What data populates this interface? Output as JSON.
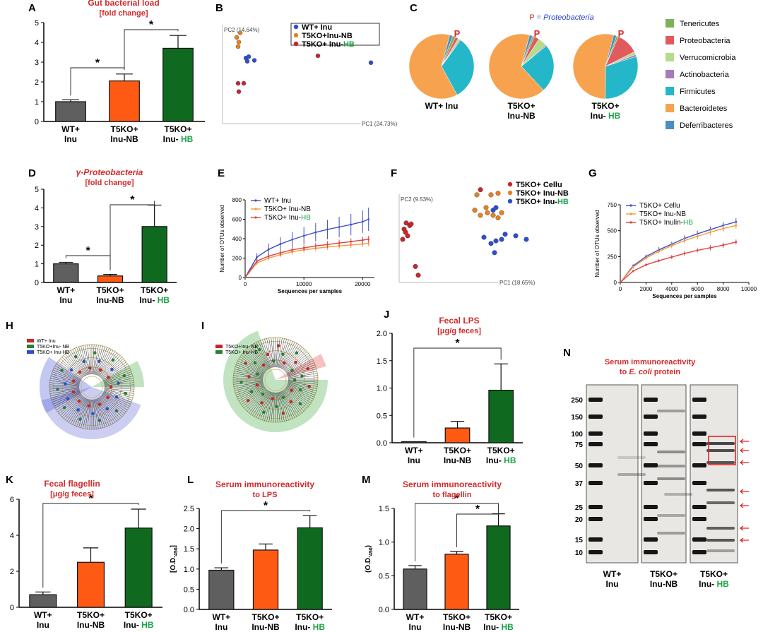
{
  "colors": {
    "wt": "#5f5f5f",
    "nb": "#ff5a14",
    "hb": "#0f6a1f",
    "red_title": "#d42a2a",
    "green_label": "#1ea34a",
    "blue_label": "#2b47c9",
    "pie_tenericutes": "#7fb05a",
    "pie_proteobacteria": "#e05a5e",
    "pie_verrucomicrobia": "#b3dc8d",
    "pie_actinobacteria": "#a77bb8",
    "pie_firmicutes": "#23b7c9",
    "pie_bacteroidetes": "#f7a24e",
    "pie_deferribacteres": "#4a8fc2",
    "line_blue": "#4050c8",
    "line_orange": "#f39c3a",
    "line_red": "#e04444",
    "sig_red": "#e02424"
  },
  "panels": {
    "A": {
      "letter": "A",
      "title_lines": [
        "Gut bacterial load",
        "[fold change]"
      ]
    },
    "B": {
      "letter": "B",
      "pc1": "PC1 (24.73%)",
      "pc2": "PC2 (14.64%)",
      "legend": [
        {
          "text": "WT+ Inu",
          "color": "#2c4fd0"
        },
        {
          "text": "T5KO+Inu-NB",
          "color": "#e8811f"
        },
        {
          "text": "T5KO+ Inu-",
          "suffix": "HB",
          "color": "#c8262c"
        }
      ]
    },
    "C": {
      "letter": "C",
      "header_p": "P",
      "header_eq": " = ",
      "header_taxon": "Proteobacteria",
      "p_marker": "P",
      "pie_labels": [
        [
          "WT+ Inu"
        ],
        [
          "T5KO+",
          "Inu-NB"
        ],
        [
          "T5KO+",
          "Inu- "
        ]
      ],
      "hb": "HB",
      "legend": [
        "Tenericutes",
        "Proteobacteria",
        "Verrucomicrobia",
        "Actinobacteria",
        "Firmicutes",
        "Bacteroidetes",
        "Deferribacteres"
      ]
    },
    "D": {
      "letter": "D",
      "title_lines": [
        "γ-Proteobacteria",
        "[fold change]"
      ]
    },
    "E": {
      "letter": "E",
      "ylabel": "Number of OTUs observed",
      "xlabel": "Sequences per samples",
      "legend": [
        {
          "text": "WT+ Inu",
          "color": "#4050c8"
        },
        {
          "text": "T5KO+ Inu-NB",
          "color": "#f39c3a"
        },
        {
          "text": "T5KO+ Inu-",
          "suffix": "HB",
          "color": "#e04444"
        }
      ]
    },
    "F": {
      "letter": "F",
      "pc1": "PC1 (18.65%)",
      "pc2": "PC2 (9.53%)",
      "legend": [
        {
          "text": "T5KO+ Cellu",
          "color": "#c8262c"
        },
        {
          "text": "T5KO+ Inu-NB",
          "color": "#e8811f"
        },
        {
          "text": "T5KO+ Inu-",
          "suffix": "HB",
          "color": "#2c4fd0"
        }
      ]
    },
    "G": {
      "letter": "G",
      "ylabel": "Number of OTUs observed",
      "xlabel": "Sequences per samples",
      "legend": [
        {
          "text": "T5KO+ Cellu",
          "color": "#4050c8"
        },
        {
          "text": "T5KO+ Inu-NB",
          "color": "#f39c3a"
        },
        {
          "text": "T5KO+ Inulin-",
          "suffix": "HB",
          "color": "#e04444"
        }
      ]
    },
    "H": {
      "letter": "H",
      "legend": [
        {
          "text": "WT+ Inu",
          "color": "#c8262c"
        },
        {
          "text": "T5KO+Inu- NB",
          "color": "#2e7d32"
        },
        {
          "text": "T5KO+ Inu-HB",
          "color": "#2c4fd0"
        }
      ]
    },
    "I": {
      "letter": "I",
      "legend": [
        {
          "text": "T5KO+Inu- NB",
          "color": "#c8262c"
        },
        {
          "text": "T5KO+ Inu-HB",
          "color": "#2e7d32"
        }
      ]
    },
    "J": {
      "letter": "J",
      "title_lines": [
        "Fecal LPS",
        "[μg/g feces]"
      ]
    },
    "K": {
      "letter": "K",
      "title_lines": [
        "Fecal flagellin",
        "[μg/g feces]"
      ]
    },
    "L": {
      "letter": "L",
      "title_lines": [
        "Serum immunoreactivity",
        "to LPS"
      ],
      "ylabel_main": "[O.D.",
      "ylabel_sub": "450",
      "ylabel_end": "]"
    },
    "M": {
      "letter": "M",
      "title_lines": [
        "Serum immunoreactivity",
        "to flagellin"
      ],
      "ylabel_main": "(O.D.",
      "ylabel_sub": "450",
      "ylabel_end": ")"
    },
    "N": {
      "letter": "N",
      "title_lines": [
        "Serum immunoreactivity",
        "to E. coli protein"
      ],
      "title_line2_pre": "to ",
      "title_line2_em": "E. coli",
      "title_line2_post": " protein",
      "markers": [
        "250",
        "150",
        "100",
        "75",
        "50",
        "37",
        "25",
        "20",
        "15",
        "10"
      ],
      "lane_labels": [
        [
          "WT+",
          "Inu"
        ],
        [
          "T5KO+",
          "Inu-NB"
        ],
        [
          "T5KO+",
          "Inu- "
        ]
      ],
      "hb": "HB"
    }
  },
  "chart_data": [
    {
      "panel": "A",
      "type": "bar",
      "categories": [
        "WT+ Inu",
        "T5KO+ Inu-NB",
        "T5KO+ Inu- HB"
      ],
      "values": [
        1.0,
        2.05,
        3.7
      ],
      "errors": [
        0.1,
        0.35,
        0.65
      ],
      "ylim": [
        0,
        5
      ],
      "yticks": [
        0,
        1,
        2,
        3,
        4,
        5
      ],
      "significance": [
        {
          "from": 0,
          "to": 1,
          "label": "*"
        },
        {
          "from": 1,
          "to": 2,
          "label": "*"
        }
      ]
    },
    {
      "panel": "D",
      "type": "bar",
      "categories": [
        "WT+ Inu",
        "T5KO+ Inu-NB",
        "T5KO+ Inu- HB"
      ],
      "values": [
        1.0,
        0.35,
        3.0
      ],
      "errors": [
        0.08,
        0.08,
        1.15
      ],
      "ylim": [
        0,
        5
      ],
      "yticks": [
        0,
        1,
        2,
        3,
        4,
        5
      ],
      "significance": [
        {
          "from": 0,
          "to": 1,
          "label": "*"
        },
        {
          "from": 1,
          "to": 2,
          "label": "*"
        }
      ]
    },
    {
      "panel": "J",
      "type": "bar",
      "categories": [
        "WT+ Inu",
        "T5KO+ Inu-NB",
        "T5KO+ Inu- HB"
      ],
      "values": [
        0.02,
        0.27,
        0.96
      ],
      "errors": [
        0.0,
        0.12,
        0.48
      ],
      "ylim": [
        0,
        2.0
      ],
      "yticks": [
        "0.0",
        "0.5",
        "1.0",
        "1.5",
        "2.0"
      ],
      "significance": [
        {
          "from": 0,
          "to": 2,
          "label": "*"
        }
      ]
    },
    {
      "panel": "K",
      "type": "bar",
      "categories": [
        "WT+ Inu",
        "T5KO+ Inu-NB",
        "T5KO+ Inu- HB"
      ],
      "values": [
        0.7,
        2.5,
        4.4
      ],
      "errors": [
        0.15,
        0.8,
        1.05
      ],
      "ylim": [
        0,
        6
      ],
      "yticks": [
        0,
        2,
        4,
        6
      ],
      "significance": [
        {
          "from": 0,
          "to": 2,
          "label": "*"
        }
      ]
    },
    {
      "panel": "L",
      "type": "bar",
      "categories": [
        "WT+ Inu",
        "T5KO+ Inu-NB",
        "T5KO+ Inu- HB"
      ],
      "values": [
        0.97,
        1.47,
        2.02
      ],
      "errors": [
        0.06,
        0.15,
        0.3
      ],
      "ylim": [
        0,
        2.5
      ],
      "yticks": [
        "0.0",
        "0.5",
        "1.0",
        "1.5",
        "2.0",
        "2.5"
      ],
      "significance": [
        {
          "from": 0,
          "to": 2,
          "label": "*"
        }
      ]
    },
    {
      "panel": "M",
      "type": "bar",
      "categories": [
        "WT+ Inu",
        "T5KO+ Inu-NB",
        "T5KO+ Inu- HB"
      ],
      "values": [
        0.6,
        0.82,
        1.24
      ],
      "errors": [
        0.05,
        0.04,
        0.18
      ],
      "ylim": [
        0,
        1.5
      ],
      "yticks": [
        "0.0",
        "0.5",
        "1.0",
        "1.5"
      ],
      "significance": [
        {
          "from": 0,
          "to": 2,
          "label": "*"
        },
        {
          "from": 1,
          "to": 2,
          "label": "*"
        }
      ]
    },
    {
      "panel": "B",
      "type": "scatter",
      "xlim": [
        -1,
        1
      ],
      "ylim": [
        -1,
        1
      ],
      "series": [
        {
          "name": "WT+ Inu",
          "color": "#2c4fd0",
          "points": [
            [
              -0.82,
              0.35
            ],
            [
              -0.8,
              0.28
            ],
            [
              -0.7,
              0.3
            ],
            [
              -0.78,
              0.38
            ],
            [
              0.95,
              0.25
            ]
          ]
        },
        {
          "name": "T5KO+Inu-NB",
          "color": "#e8811f",
          "points": [
            [
              -0.95,
              0.8
            ],
            [
              -0.92,
              0.7
            ],
            [
              -0.93,
              0.6
            ],
            [
              -0.9,
              0.9
            ]
          ]
        },
        {
          "name": "T5KO+ Inu-HB",
          "color": "#c8262c",
          "points": [
            [
              -0.93,
              -0.2
            ],
            [
              -0.85,
              -0.2
            ],
            [
              -0.92,
              -0.38
            ],
            [
              0.2,
              0.4
            ]
          ]
        }
      ]
    },
    {
      "panel": "F",
      "type": "scatter",
      "xlim": [
        -1,
        1
      ],
      "ylim": [
        -1,
        1
      ],
      "series": [
        {
          "name": "T5KO+ Cellu",
          "color": "#c8262c",
          "points": [
            [
              -0.85,
              0.3
            ],
            [
              -0.8,
              0.25
            ],
            [
              -0.88,
              0.18
            ],
            [
              -0.83,
              0.05
            ],
            [
              -0.9,
              -0.02
            ],
            [
              -0.86,
              0.12
            ],
            [
              -0.78,
              0.28
            ],
            [
              -0.72,
              -0.55
            ],
            [
              -0.68,
              -0.72
            ],
            [
              0.2,
              0.95
            ]
          ]
        },
        {
          "name": "T5KO+ Inu-NB",
          "color": "#e8811f",
          "points": [
            [
              0.15,
              0.85
            ],
            [
              0.35,
              0.85
            ],
            [
              0.45,
              0.88
            ],
            [
              0.12,
              0.55
            ],
            [
              0.2,
              0.45
            ],
            [
              0.3,
              0.5
            ],
            [
              0.38,
              0.45
            ],
            [
              0.45,
              0.4
            ],
            [
              0.5,
              0.5
            ],
            [
              0.28,
              0.6
            ]
          ]
        },
        {
          "name": "T5KO+ Inu-HB",
          "color": "#2c4fd0",
          "points": [
            [
              0.38,
              0.55
            ],
            [
              0.42,
              0.6
            ],
            [
              0.25,
              0.02
            ],
            [
              0.35,
              -0.1
            ],
            [
              0.42,
              -0.05
            ],
            [
              0.5,
              -0.02
            ],
            [
              0.55,
              0.08
            ],
            [
              0.7,
              0.05
            ],
            [
              0.85,
              -0.02
            ],
            [
              0.4,
              -0.28
            ]
          ]
        }
      ]
    },
    {
      "panel": "C",
      "type": "pie",
      "categories": [
        "Tenericutes",
        "Proteobacteria",
        "Verrucomicrobia",
        "Actinobacteria",
        "Firmicutes",
        "Bacteroidetes",
        "Deferribacteres"
      ],
      "series": [
        {
          "name": "WT+ Inu",
          "values": [
            1.5,
            1.5,
            1.0,
            0.5,
            32,
            62,
            1.5
          ]
        },
        {
          "name": "T5KO+ Inu-NB",
          "values": [
            1.0,
            2.5,
            4.5,
            0.5,
            24,
            66,
            1.5
          ]
        },
        {
          "name": "T5KO+ Inu- HB",
          "values": [
            1.0,
            11,
            1.5,
            1.0,
            30,
            54,
            1.5
          ]
        }
      ]
    },
    {
      "panel": "E",
      "type": "line",
      "xlim": [
        0,
        22000
      ],
      "ylim": [
        0,
        800
      ],
      "xticks": [
        0,
        10000,
        20000
      ],
      "yticks": [
        0,
        200,
        400,
        600,
        800
      ],
      "x": [
        0,
        2000,
        4000,
        6000,
        8000,
        10000,
        12000,
        14000,
        16000,
        18000,
        20000,
        21000
      ],
      "series": [
        {
          "name": "WT+ Inu",
          "color": "#4050c8",
          "values": [
            0,
            210,
            290,
            345,
            390,
            430,
            465,
            495,
            520,
            545,
            575,
            600
          ],
          "error": [
            0,
            40,
            60,
            70,
            80,
            90,
            95,
            100,
            105,
            110,
            115,
            120
          ]
        },
        {
          "name": "T5KO+ Inu-NB",
          "color": "#f39c3a",
          "values": [
            0,
            150,
            200,
            235,
            265,
            285,
            300,
            315,
            325,
            335,
            345,
            350
          ],
          "error": [
            0,
            20,
            25,
            25,
            30,
            30,
            30,
            30,
            30,
            30,
            30,
            30
          ]
        },
        {
          "name": "T5KO+ Inu-HB",
          "color": "#e04444",
          "values": [
            0,
            170,
            220,
            255,
            285,
            305,
            325,
            340,
            355,
            370,
            385,
            395
          ],
          "error": [
            0,
            20,
            25,
            30,
            30,
            30,
            30,
            35,
            35,
            35,
            35,
            35
          ]
        }
      ]
    },
    {
      "panel": "G",
      "type": "line",
      "xlim": [
        0,
        10000
      ],
      "ylim": [
        0,
        750
      ],
      "xticks": [
        0,
        2000,
        4000,
        6000,
        8000,
        10000
      ],
      "yticks": [
        0,
        250,
        500,
        750
      ],
      "x": [
        0,
        1000,
        2000,
        3000,
        4000,
        5000,
        6000,
        7000,
        8000,
        9000
      ],
      "series": [
        {
          "name": "T5KO+ Cellu",
          "color": "#4050c8",
          "values": [
            0,
            160,
            250,
            315,
            370,
            425,
            470,
            510,
            550,
            585
          ],
          "error": [
            0,
            15,
            20,
            25,
            25,
            30,
            30,
            30,
            35,
            35
          ]
        },
        {
          "name": "T5KO+ Inu-NB",
          "color": "#f39c3a",
          "values": [
            0,
            150,
            235,
            300,
            355,
            405,
            445,
            485,
            520,
            550
          ],
          "error": [
            0,
            15,
            20,
            20,
            25,
            25,
            30,
            30,
            30,
            30
          ]
        },
        {
          "name": "T5KO+ Inulin-HB",
          "color": "#e04444",
          "values": [
            0,
            110,
            170,
            210,
            245,
            280,
            310,
            335,
            360,
            390
          ],
          "error": [
            0,
            10,
            15,
            15,
            20,
            20,
            20,
            25,
            25,
            25
          ]
        }
      ]
    }
  ]
}
